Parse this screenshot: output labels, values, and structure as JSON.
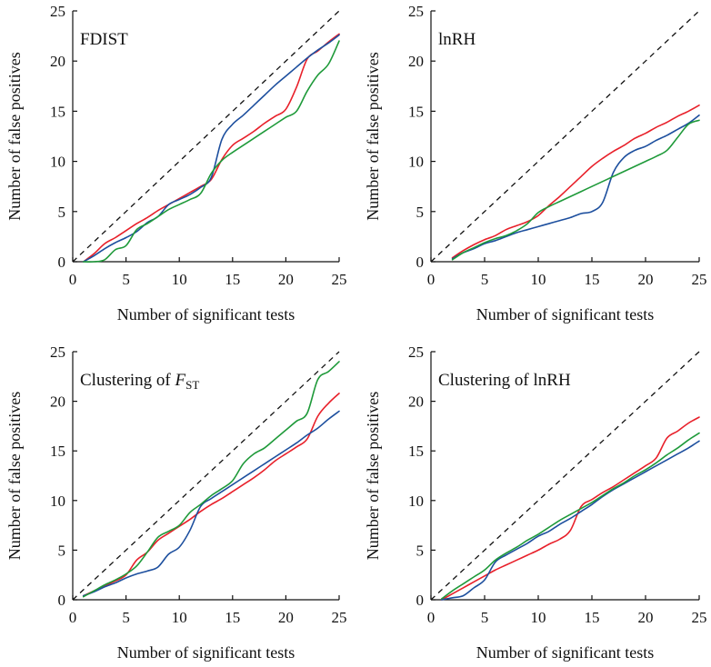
{
  "colors": {
    "red": "#e8202a",
    "blue": "#1d4f9e",
    "green": "#1f9a3a"
  },
  "chart_data": [
    {
      "type": "line",
      "title": "FDIST",
      "xlabel": "Number of significant tests",
      "ylabel": "Number of false positives",
      "xlim": [
        0,
        25
      ],
      "ylim": [
        0,
        25
      ],
      "xticks": [
        "0",
        "5",
        "10",
        "15",
        "20",
        "25"
      ],
      "yticks": [
        "0",
        "5",
        "10",
        "15",
        "20",
        "25"
      ],
      "reference_line": "y = x (dashed)",
      "series": [
        {
          "color": "red",
          "x": [
            1,
            2,
            3,
            4,
            5,
            6,
            7,
            8,
            9,
            10,
            11,
            12,
            13,
            14,
            15,
            16,
            17,
            18,
            19,
            20,
            21,
            22,
            23,
            24,
            25
          ],
          "y": [
            0,
            0.8,
            1.8,
            2.4,
            3.1,
            3.8,
            4.4,
            5.1,
            5.7,
            6.3,
            6.9,
            7.5,
            8.2,
            10.2,
            11.6,
            12.3,
            13.0,
            13.8,
            14.5,
            15.2,
            17.4,
            20.2,
            21.0,
            21.9,
            22.7
          ]
        },
        {
          "color": "blue",
          "x": [
            1,
            2,
            3,
            4,
            5,
            6,
            7,
            8,
            9,
            10,
            11,
            12,
            13,
            14,
            15,
            16,
            17,
            18,
            19,
            20,
            21,
            22,
            23,
            24,
            25
          ],
          "y": [
            0,
            0.6,
            1.3,
            1.9,
            2.4,
            3.0,
            3.9,
            4.5,
            5.7,
            6.2,
            6.7,
            7.4,
            8.4,
            12.2,
            13.7,
            14.6,
            15.6,
            16.6,
            17.6,
            18.5,
            19.4,
            20.3,
            21.1,
            21.8,
            22.6
          ]
        },
        {
          "color": "green",
          "x": [
            1,
            2,
            3,
            4,
            5,
            6,
            7,
            8,
            9,
            10,
            11,
            12,
            13,
            14,
            15,
            16,
            17,
            18,
            19,
            20,
            21,
            22,
            23,
            24,
            25
          ],
          "y": [
            0,
            0,
            0.2,
            1.2,
            1.6,
            3.2,
            3.8,
            4.5,
            5.2,
            5.7,
            6.2,
            6.8,
            8.8,
            10.1,
            10.9,
            11.6,
            12.3,
            13.0,
            13.7,
            14.4,
            15.0,
            17.0,
            18.6,
            19.7,
            22.0
          ]
        }
      ]
    },
    {
      "type": "line",
      "title": "lnRH",
      "xlabel": "Number of significant tests",
      "ylabel": "Number of false positives",
      "xlim": [
        0,
        25
      ],
      "ylim": [
        0,
        25
      ],
      "xticks": [
        "0",
        "5",
        "10",
        "15",
        "20",
        "25"
      ],
      "yticks": [
        "0",
        "5",
        "10",
        "15",
        "20",
        "25"
      ],
      "reference_line": "y = x (dashed)",
      "series": [
        {
          "color": "red",
          "x": [
            2,
            3,
            4,
            5,
            6,
            7,
            8,
            9,
            10,
            11,
            12,
            13,
            14,
            15,
            16,
            17,
            18,
            19,
            20,
            21,
            22,
            23,
            24,
            25
          ],
          "y": [
            0.4,
            1.1,
            1.7,
            2.2,
            2.6,
            3.2,
            3.6,
            4.0,
            4.6,
            5.6,
            6.5,
            7.5,
            8.5,
            9.5,
            10.3,
            11.0,
            11.6,
            12.3,
            12.8,
            13.4,
            13.9,
            14.5,
            15.0,
            15.6
          ]
        },
        {
          "color": "blue",
          "x": [
            2,
            3,
            4,
            5,
            6,
            7,
            8,
            9,
            10,
            11,
            12,
            13,
            14,
            15,
            16,
            17,
            18,
            19,
            20,
            21,
            22,
            23,
            24,
            25
          ],
          "y": [
            0.3,
            0.9,
            1.3,
            1.8,
            2.1,
            2.5,
            2.9,
            3.2,
            3.5,
            3.8,
            4.1,
            4.4,
            4.8,
            5.0,
            5.9,
            8.9,
            10.4,
            11.1,
            11.5,
            12.1,
            12.6,
            13.2,
            13.8,
            14.6
          ]
        },
        {
          "color": "green",
          "x": [
            2,
            3,
            4,
            5,
            6,
            7,
            8,
            9,
            10,
            11,
            12,
            13,
            14,
            15,
            16,
            17,
            18,
            19,
            20,
            21,
            22,
            23,
            24,
            25
          ],
          "y": [
            0.2,
            0.9,
            1.4,
            1.9,
            2.3,
            2.6,
            3.1,
            3.8,
            4.9,
            5.5,
            6.0,
            6.5,
            7.0,
            7.5,
            8.0,
            8.5,
            9.0,
            9.5,
            10.0,
            10.5,
            11.1,
            12.4,
            13.7,
            14.1
          ]
        }
      ]
    },
    {
      "type": "line",
      "title": "Clustering of F",
      "title_subscript": "ST",
      "xlabel": "Number of significant tests",
      "ylabel": "Number of false positives",
      "xlim": [
        0,
        25
      ],
      "ylim": [
        0,
        25
      ],
      "xticks": [
        "0",
        "5",
        "10",
        "15",
        "20",
        "25"
      ],
      "yticks": [
        "0",
        "5",
        "10",
        "15",
        "20",
        "25"
      ],
      "reference_line": "y = x (dashed)",
      "series": [
        {
          "color": "red",
          "x": [
            1,
            2,
            3,
            4,
            5,
            6,
            7,
            8,
            9,
            10,
            11,
            12,
            13,
            14,
            15,
            16,
            17,
            18,
            19,
            20,
            21,
            22,
            23,
            24,
            25
          ],
          "y": [
            0.4,
            0.9,
            1.4,
            1.9,
            2.5,
            4.0,
            4.8,
            6.0,
            6.7,
            7.4,
            8.1,
            8.9,
            9.6,
            10.2,
            10.9,
            11.6,
            12.3,
            13.1,
            14.0,
            14.7,
            15.4,
            16.2,
            18.5,
            19.8,
            20.8
          ]
        },
        {
          "color": "blue",
          "x": [
            1,
            2,
            3,
            4,
            5,
            6,
            7,
            8,
            9,
            10,
            11,
            12,
            13,
            14,
            15,
            16,
            17,
            18,
            19,
            20,
            21,
            22,
            23,
            24,
            25
          ],
          "y": [
            0.4,
            0.8,
            1.3,
            1.7,
            2.2,
            2.6,
            2.9,
            3.3,
            4.6,
            5.3,
            7.0,
            9.4,
            10.2,
            10.9,
            11.6,
            12.3,
            13.0,
            13.7,
            14.4,
            15.1,
            15.8,
            16.6,
            17.3,
            18.2,
            19.0
          ]
        },
        {
          "color": "green",
          "x": [
            1,
            2,
            3,
            4,
            5,
            6,
            7,
            8,
            9,
            10,
            11,
            12,
            13,
            14,
            15,
            16,
            17,
            18,
            19,
            20,
            21,
            22,
            23,
            24,
            25
          ],
          "y": [
            0.3,
            0.9,
            1.5,
            2.0,
            2.6,
            3.4,
            4.8,
            6.3,
            6.9,
            7.5,
            8.8,
            9.6,
            10.5,
            11.2,
            12.0,
            13.7,
            14.7,
            15.3,
            16.2,
            17.1,
            18.0,
            18.8,
            22.2,
            23.0,
            24.0
          ]
        }
      ]
    },
    {
      "type": "line",
      "title": "Clustering of lnRH",
      "xlabel": "Number of significant tests",
      "ylabel": "Number of false positives",
      "xlim": [
        0,
        25
      ],
      "ylim": [
        0,
        25
      ],
      "xticks": [
        "0",
        "5",
        "10",
        "15",
        "20",
        "25"
      ],
      "yticks": [
        "0",
        "5",
        "10",
        "15",
        "20",
        "25"
      ],
      "reference_line": "y = x (dashed)",
      "series": [
        {
          "color": "red",
          "x": [
            1,
            2,
            3,
            4,
            5,
            6,
            7,
            8,
            9,
            10,
            11,
            12,
            13,
            14,
            15,
            16,
            17,
            18,
            19,
            20,
            21,
            22,
            23,
            24,
            25
          ],
          "y": [
            0,
            0.6,
            1.2,
            1.8,
            2.4,
            3.0,
            3.5,
            4.0,
            4.5,
            5.0,
            5.6,
            6.1,
            7.0,
            9.4,
            10.1,
            10.8,
            11.4,
            12.1,
            12.8,
            13.5,
            14.3,
            16.3,
            17.0,
            17.8,
            18.4
          ]
        },
        {
          "color": "blue",
          "x": [
            1,
            2,
            3,
            4,
            5,
            6,
            7,
            8,
            9,
            10,
            11,
            12,
            13,
            14,
            15,
            16,
            17,
            18,
            19,
            20,
            21,
            22,
            23,
            24,
            25
          ],
          "y": [
            0,
            0.2,
            0.4,
            1.2,
            2.0,
            3.8,
            4.5,
            5.1,
            5.7,
            6.4,
            6.9,
            7.6,
            8.2,
            8.9,
            9.6,
            10.4,
            11.1,
            11.7,
            12.3,
            12.9,
            13.5,
            14.1,
            14.7,
            15.3,
            16.0
          ]
        },
        {
          "color": "green",
          "x": [
            1,
            2,
            3,
            4,
            5,
            6,
            7,
            8,
            9,
            10,
            11,
            12,
            13,
            14,
            15,
            16,
            17,
            18,
            19,
            20,
            21,
            22,
            23,
            24,
            25
          ],
          "y": [
            0.1,
            0.9,
            1.6,
            2.3,
            3.0,
            4.0,
            4.7,
            5.3,
            6.0,
            6.6,
            7.3,
            8.0,
            8.6,
            9.2,
            9.8,
            10.5,
            11.2,
            11.8,
            12.5,
            13.1,
            13.8,
            14.6,
            15.3,
            16.1,
            16.8
          ]
        }
      ]
    }
  ]
}
